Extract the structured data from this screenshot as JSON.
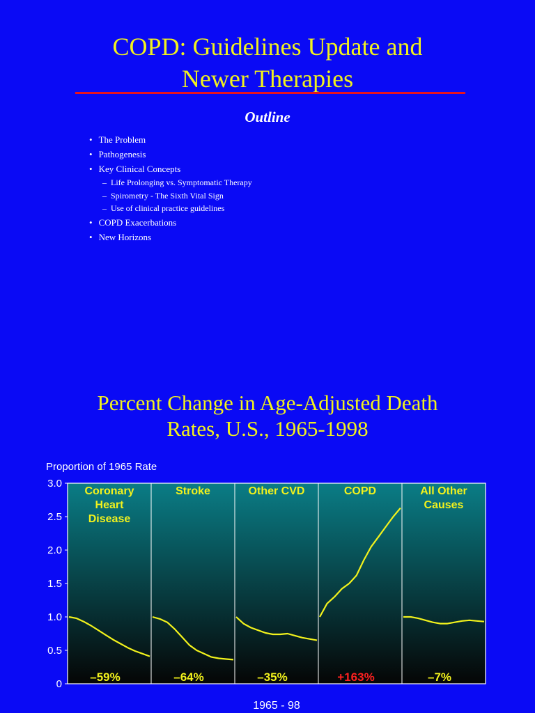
{
  "slide1": {
    "title_line1": "COPD: Guidelines Update and",
    "title_line2": "Newer Therapies",
    "outline_heading": "Outline",
    "outline_items": [
      {
        "text": "The Problem",
        "level": 1
      },
      {
        "text": "Pathogenesis",
        "level": 1
      },
      {
        "text": "Key Clinical Concepts",
        "level": 1
      },
      {
        "text": "Life Prolonging vs. Symptomatic Therapy",
        "level": 2
      },
      {
        "text": "Spirometry - The Sixth Vital Sign",
        "level": 2
      },
      {
        "text": "Use of clinical practice guidelines",
        "level": 2
      },
      {
        "text": "COPD Exacerbations",
        "level": 1
      },
      {
        "text": "New Horizons",
        "level": 1
      }
    ],
    "colors": {
      "background": "#0a0af5",
      "title": "#f2f21c",
      "rule": "#e8141e"
    }
  },
  "chart_data": {
    "type": "line",
    "title_line1": "Percent Change in Age-Adjusted Death",
    "title_line2": "Rates, U.S., 1965-1998",
    "ylabel": "Proportion of 1965 Rate",
    "xlabel": "1965 - 98",
    "ylim": [
      0,
      3.0
    ],
    "yticks": [
      "0",
      "0.5",
      "1.0",
      "1.5",
      "2.0",
      "2.5",
      "3.0"
    ],
    "yticks_values": [
      0,
      0.5,
      1.0,
      1.5,
      2.0,
      2.5,
      3.0
    ],
    "xlim": [
      1965,
      1998
    ],
    "panels": [
      {
        "name_lines": [
          "Coronary",
          "Heart",
          "Disease"
        ],
        "change": "–59%",
        "change_color": "#f2f21c",
        "x": [
          1965,
          1968,
          1971,
          1974,
          1977,
          1980,
          1983,
          1986,
          1989,
          1992,
          1995,
          1998
        ],
        "y": [
          1.0,
          0.98,
          0.93,
          0.87,
          0.8,
          0.73,
          0.66,
          0.6,
          0.54,
          0.49,
          0.45,
          0.41
        ]
      },
      {
        "name_lines": [
          "Stroke"
        ],
        "change": "–64%",
        "change_color": "#f2f21c",
        "x": [
          1965,
          1968,
          1971,
          1974,
          1977,
          1980,
          1983,
          1986,
          1989,
          1992,
          1995,
          1998
        ],
        "y": [
          1.0,
          0.97,
          0.92,
          0.82,
          0.7,
          0.58,
          0.5,
          0.45,
          0.4,
          0.38,
          0.37,
          0.36
        ]
      },
      {
        "name_lines": [
          "Other CVD"
        ],
        "change": "–35%",
        "change_color": "#f2f21c",
        "x": [
          1965,
          1968,
          1971,
          1974,
          1977,
          1980,
          1983,
          1986,
          1989,
          1992,
          1995,
          1998
        ],
        "y": [
          1.0,
          0.9,
          0.84,
          0.8,
          0.76,
          0.74,
          0.74,
          0.75,
          0.72,
          0.69,
          0.67,
          0.65
        ]
      },
      {
        "name_lines": [
          "COPD"
        ],
        "change": "+163%",
        "change_color": "#ff2020",
        "x": [
          1965,
          1968,
          1971,
          1974,
          1977,
          1980,
          1983,
          1986,
          1989,
          1992,
          1995,
          1998
        ],
        "y": [
          1.0,
          1.2,
          1.3,
          1.42,
          1.5,
          1.62,
          1.85,
          2.05,
          2.2,
          2.35,
          2.5,
          2.63
        ]
      },
      {
        "name_lines": [
          "All Other",
          "Causes"
        ],
        "change": "–7%",
        "change_color": "#f2f21c",
        "x": [
          1965,
          1968,
          1971,
          1974,
          1977,
          1980,
          1983,
          1986,
          1989,
          1992,
          1995,
          1998
        ],
        "y": [
          1.0,
          1.0,
          0.98,
          0.95,
          0.92,
          0.9,
          0.9,
          0.92,
          0.94,
          0.95,
          0.94,
          0.93
        ]
      }
    ],
    "colors": {
      "line": "#f2f21c",
      "panel_top": "#0a7d86",
      "panel_bottom": "#050505",
      "label": "#f2f21c"
    }
  }
}
